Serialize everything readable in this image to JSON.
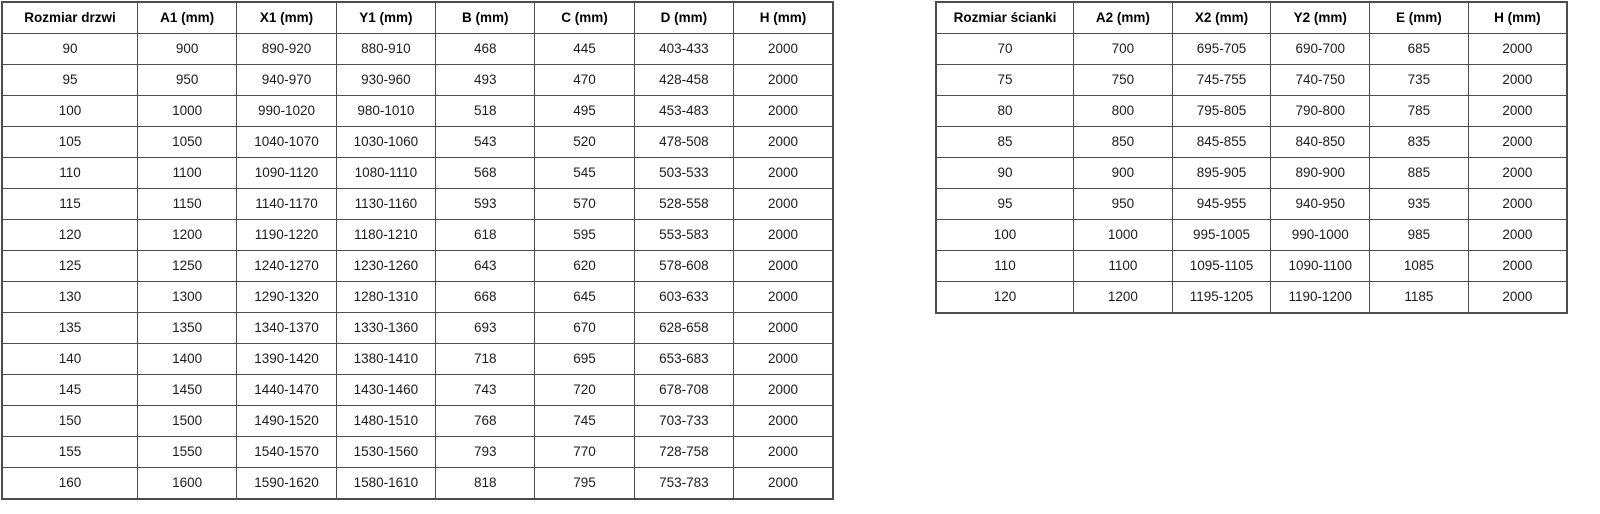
{
  "page": {
    "background_color": "#ffffff",
    "border_color": "#4d4d4d",
    "text_color": "#1b1b1b"
  },
  "tables": [
    {
      "name": "door-sizes",
      "headers": [
        "Rozmiar drzwi",
        "A1 (mm)",
        "X1 (mm)",
        "Y1 (mm)",
        "B (mm)",
        "C (mm)",
        "D (mm)",
        "H (mm)"
      ],
      "rows": [
        [
          "90",
          "900",
          "890-920",
          "880-910",
          "468",
          "445",
          "403-433",
          "2000"
        ],
        [
          "95",
          "950",
          "940-970",
          "930-960",
          "493",
          "470",
          "428-458",
          "2000"
        ],
        [
          "100",
          "1000",
          "990-1020",
          "980-1010",
          "518",
          "495",
          "453-483",
          "2000"
        ],
        [
          "105",
          "1050",
          "1040-1070",
          "1030-1060",
          "543",
          "520",
          "478-508",
          "2000"
        ],
        [
          "110",
          "1100",
          "1090-1120",
          "1080-1110",
          "568",
          "545",
          "503-533",
          "2000"
        ],
        [
          "115",
          "1150",
          "1140-1170",
          "1130-1160",
          "593",
          "570",
          "528-558",
          "2000"
        ],
        [
          "120",
          "1200",
          "1190-1220",
          "1180-1210",
          "618",
          "595",
          "553-583",
          "2000"
        ],
        [
          "125",
          "1250",
          "1240-1270",
          "1230-1260",
          "643",
          "620",
          "578-608",
          "2000"
        ],
        [
          "130",
          "1300",
          "1290-1320",
          "1280-1310",
          "668",
          "645",
          "603-633",
          "2000"
        ],
        [
          "135",
          "1350",
          "1340-1370",
          "1330-1360",
          "693",
          "670",
          "628-658",
          "2000"
        ],
        [
          "140",
          "1400",
          "1390-1420",
          "1380-1410",
          "718",
          "695",
          "653-683",
          "2000"
        ],
        [
          "145",
          "1450",
          "1440-1470",
          "1430-1460",
          "743",
          "720",
          "678-708",
          "2000"
        ],
        [
          "150",
          "1500",
          "1490-1520",
          "1480-1510",
          "768",
          "745",
          "703-733",
          "2000"
        ],
        [
          "155",
          "1550",
          "1540-1570",
          "1530-1560",
          "793",
          "770",
          "728-758",
          "2000"
        ],
        [
          "160",
          "1600",
          "1590-1620",
          "1580-1610",
          "818",
          "795",
          "753-783",
          "2000"
        ]
      ]
    },
    {
      "name": "wall-panel-sizes",
      "headers": [
        "Rozmiar ścianki",
        "A2 (mm)",
        "X2 (mm)",
        "Y2 (mm)",
        "E (mm)",
        "H (mm)"
      ],
      "rows": [
        [
          "70",
          "700",
          "695-705",
          "690-700",
          "685",
          "2000"
        ],
        [
          "75",
          "750",
          "745-755",
          "740-750",
          "735",
          "2000"
        ],
        [
          "80",
          "800",
          "795-805",
          "790-800",
          "785",
          "2000"
        ],
        [
          "85",
          "850",
          "845-855",
          "840-850",
          "835",
          "2000"
        ],
        [
          "90",
          "900",
          "895-905",
          "890-900",
          "885",
          "2000"
        ],
        [
          "95",
          "950",
          "945-955",
          "940-950",
          "935",
          "2000"
        ],
        [
          "100",
          "1000",
          "995-1005",
          "990-1000",
          "985",
          "2000"
        ],
        [
          "110",
          "1100",
          "1095-1105",
          "1090-1100",
          "1085",
          "2000"
        ],
        [
          "120",
          "1200",
          "1195-1205",
          "1190-1200",
          "1185",
          "2000"
        ]
      ]
    }
  ]
}
